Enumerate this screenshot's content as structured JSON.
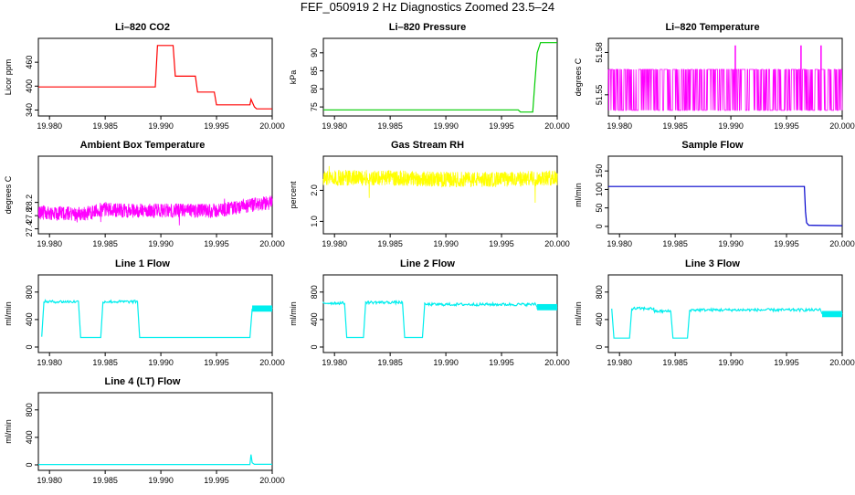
{
  "title": "FEF_050919  2 Hz Diagnostics Zoomed 23.5–24",
  "chart_data": [
    {
      "id": "co2",
      "type": "line",
      "title": "Li–820 CO2",
      "ylabel": "Licor ppm",
      "color": "#ff0000",
      "xlim": [
        19.979,
        20.0
      ],
      "ylim": [
        325,
        520
      ],
      "yticks": [
        "340",
        "400",
        "460"
      ],
      "xticks": [
        "19.980",
        "19.985",
        "19.990",
        "19.995",
        "20.000"
      ],
      "series": [
        {
          "x": [
            19.979,
            19.9895,
            19.9897,
            19.9911,
            19.9913,
            19.9931,
            19.9933,
            19.9948,
            19.995,
            19.998,
            19.9981,
            19.9984,
            19.9986,
            20.0
          ],
          "y": [
            398,
            398,
            502,
            502,
            425,
            425,
            385,
            385,
            353,
            353,
            367,
            348,
            343,
            343
          ]
        }
      ]
    },
    {
      "id": "pressure",
      "type": "line",
      "title": "Li–820 Pressure",
      "ylabel": "kPa",
      "color": "#00cc00",
      "xlim": [
        19.979,
        20.0
      ],
      "ylim": [
        72.5,
        94
      ],
      "yticks": [
        "75",
        "80",
        "85",
        "90"
      ],
      "xticks": [
        "19.980",
        "19.985",
        "19.990",
        "19.995",
        "20.000"
      ],
      "series": [
        {
          "x": [
            19.979,
            19.9965,
            19.9967,
            19.9978,
            19.998,
            19.9982,
            19.9985,
            20.0
          ],
          "y": [
            74.2,
            74.2,
            73.6,
            73.6,
            82,
            90,
            92.8,
            92.8
          ]
        }
      ]
    },
    {
      "id": "li820temp",
      "type": "line",
      "title": "Li–820 Temperature",
      "ylabel": "degrees C",
      "color": "#ff00ff",
      "xlim": [
        19.979,
        20.0
      ],
      "ylim": [
        51.535,
        51.59
      ],
      "yticks": [
        "51.55",
        "51.58"
      ],
      "xticks": [
        "19.980",
        "19.985",
        "19.990",
        "19.995",
        "20.000"
      ],
      "series": [
        {
          "x": [
            19.979,
            20.0
          ],
          "y": [
            51.568,
            51.568
          ]
        }
      ],
      "note": "dense 2 Hz flicker between 51.568 and 51.539, spikes to 51.583"
    },
    {
      "id": "boxtemp",
      "type": "line",
      "title": "Ambient Box Temperature",
      "ylabel": "degrees C",
      "color": "#ff00ff",
      "xlim": [
        19.979,
        20.0
      ],
      "ylim": [
        27.25,
        29.6
      ],
      "yticks": [
        "27.4",
        "27.8",
        "28.2"
      ],
      "xticks": [
        "19.980",
        "19.985",
        "19.990",
        "19.995",
        "20.000"
      ],
      "series": [
        {
          "x": [
            19.979,
            19.983,
            19.985,
            19.987,
            19.99,
            19.995,
            19.998,
            20.0
          ],
          "y": [
            27.9,
            27.85,
            28.0,
            27.95,
            27.95,
            27.95,
            28.1,
            28.2
          ]
        }
      ]
    },
    {
      "id": "rh",
      "type": "line",
      "title": "Gas Stream RH",
      "ylabel": "percent",
      "color": "#ffff00",
      "xlim": [
        19.979,
        20.0
      ],
      "ylim": [
        0.6,
        3.1
      ],
      "yticks": [
        "1.0",
        "2.0"
      ],
      "xticks": [
        "19.980",
        "19.985",
        "19.990",
        "19.995",
        "20.000"
      ],
      "series": [
        {
          "x": [
            19.979,
            19.985,
            19.99,
            19.995,
            20.0
          ],
          "y": [
            2.4,
            2.4,
            2.35,
            2.35,
            2.4
          ]
        }
      ]
    },
    {
      "id": "sampleflow",
      "type": "line",
      "title": "Sample Flow",
      "ylabel": "ml/min",
      "color": "#0000cc",
      "xlim": [
        19.979,
        20.0
      ],
      "ylim": [
        -20,
        190
      ],
      "yticks": [
        "0",
        "50",
        "100",
        "150"
      ],
      "xticks": [
        "19.980",
        "19.985",
        "19.990",
        "19.995",
        "20.000"
      ],
      "series": [
        {
          "x": [
            19.979,
            19.9966,
            19.9967,
            19.9968,
            19.997,
            20.0
          ],
          "y": [
            108,
            108,
            40,
            10,
            3,
            2
          ]
        }
      ]
    },
    {
      "id": "line1",
      "type": "line",
      "title": "Line 1 Flow",
      "ylabel": "ml/min",
      "color": "#00eeee",
      "xlim": [
        19.979,
        20.0
      ],
      "ylim": [
        -80,
        1050
      ],
      "yticks": [
        "0",
        "400",
        "800"
      ],
      "xticks": [
        "19.980",
        "19.985",
        "19.990",
        "19.995",
        "20.000"
      ],
      "series": [
        {
          "x": [
            19.9793,
            19.9795,
            19.9826,
            19.9828,
            19.9846,
            19.9848,
            19.9879,
            19.9881,
            19.998,
            19.9982,
            20.0
          ],
          "y": [
            150,
            660,
            660,
            140,
            140,
            660,
            660,
            140,
            140,
            560,
            560
          ]
        }
      ]
    },
    {
      "id": "line2",
      "type": "line",
      "title": "Line 2 Flow",
      "ylabel": "ml/min",
      "color": "#00eeee",
      "xlim": [
        19.979,
        20.0
      ],
      "ylim": [
        -80,
        1050
      ],
      "yticks": [
        "0",
        "400",
        "800"
      ],
      "xticks": [
        "19.980",
        "19.985",
        "19.990",
        "19.995",
        "20.000"
      ],
      "series": [
        {
          "x": [
            19.979,
            19.9809,
            19.9811,
            19.9826,
            19.9828,
            19.9861,
            19.9863,
            19.9879,
            19.9881,
            19.998,
            19.9982,
            20.0
          ],
          "y": [
            640,
            640,
            140,
            140,
            650,
            650,
            140,
            140,
            620,
            640,
            580,
            580
          ]
        }
      ]
    },
    {
      "id": "line3",
      "type": "line",
      "title": "Line 3 Flow",
      "ylabel": "ml/min",
      "color": "#00eeee",
      "xlim": [
        19.979,
        20.0
      ],
      "ylim": [
        -80,
        1050
      ],
      "yticks": [
        "0",
        "400",
        "800"
      ],
      "xticks": [
        "19.980",
        "19.985",
        "19.990",
        "19.995",
        "20.000"
      ],
      "series": [
        {
          "x": [
            19.9793,
            19.9795,
            19.9809,
            19.9811,
            19.9829,
            19.9831,
            19.9846,
            19.9848,
            19.9861,
            19.9863,
            19.998,
            19.9982,
            20.0
          ],
          "y": [
            560,
            130,
            130,
            560,
            560,
            520,
            520,
            130,
            130,
            540,
            560,
            480,
            480
          ]
        }
      ]
    },
    {
      "id": "line4",
      "type": "line",
      "title": "Line 4 (LT) Flow",
      "ylabel": "ml/min",
      "color": "#00eeee",
      "xlim": [
        19.979,
        20.0
      ],
      "ylim": [
        -80,
        1050
      ],
      "yticks": [
        "0",
        "400",
        "800"
      ],
      "xticks": [
        "19.980",
        "19.985",
        "19.990",
        "19.995",
        "20.000"
      ],
      "series": [
        {
          "x": [
            19.979,
            19.998,
            19.9981,
            19.9982,
            19.9984,
            20.0
          ],
          "y": [
            5,
            5,
            150,
            30,
            8,
            8
          ]
        }
      ]
    }
  ]
}
